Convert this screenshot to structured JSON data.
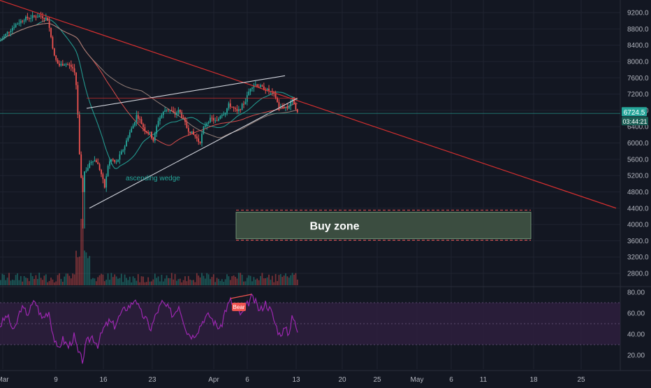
{
  "chart_data": [
    {
      "type": "candlestick",
      "price_axis": {
        "ticks": [
          "9200.0",
          "8800.0",
          "8400.0",
          "8000.0",
          "7600.0",
          "7200.0",
          "6800.0",
          "6400.0",
          "6000.0",
          "5600.0",
          "5200.0",
          "4800.0",
          "4400.0",
          "4000.0",
          "3600.0",
          "3200.0",
          "2800.0"
        ],
        "ylim": [
          2500,
          9400
        ]
      },
      "date_axis": {
        "ticks": [
          "Mar",
          "9",
          "16",
          "23",
          "Apr",
          "6",
          "13",
          "20",
          "25",
          "May",
          "6",
          "11",
          "18",
          "25"
        ]
      },
      "last_price": "6724.5",
      "countdown": "03:44:21",
      "current_price_value": 6724.5,
      "annotations": {
        "pattern_label": "ascending wedge",
        "zone_label": "Buy zone",
        "zone_range": [
          3650,
          4300
        ]
      },
      "colors": {
        "up": "#26a69a",
        "down": "#ef5350",
        "ma_teal": "#26a69a",
        "ma_brown": "#a1887f",
        "ma_red": "#ef5350",
        "trendline": "#d32f2f",
        "wedge": "#d1d4dc",
        "zone_fill": "#3b4d40",
        "zone_border": "#6f8f73",
        "price_tag": "#26a69a",
        "countdown_tag": "#1b5e55"
      }
    },
    {
      "type": "line",
      "indicator": "RSI",
      "ticks": [
        "80.00",
        "60.00",
        "40.00",
        "20.00"
      ],
      "ylim": [
        10,
        88
      ],
      "band": [
        30,
        70
      ],
      "signal_label": "Bear",
      "colors": {
        "line": "#9c27b0",
        "band": "#2e1f3d",
        "signal": "#ef5350"
      }
    }
  ]
}
